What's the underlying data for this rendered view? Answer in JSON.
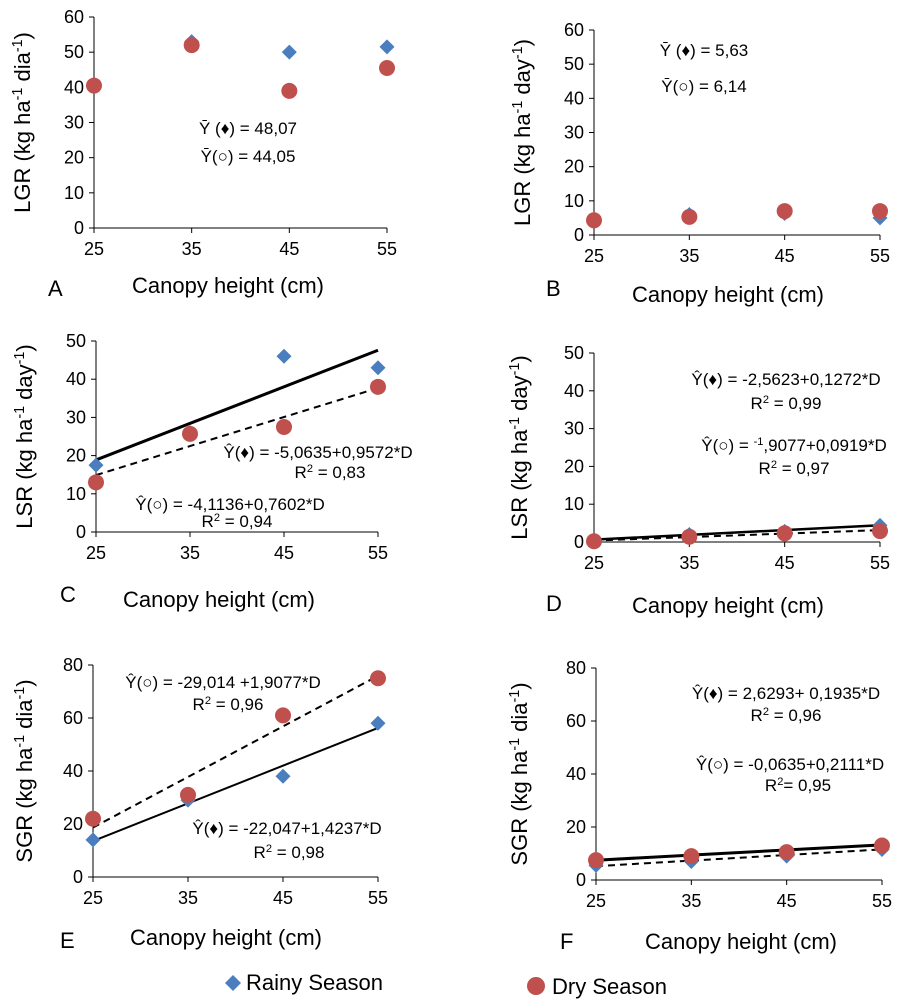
{
  "legend": {
    "rainy": {
      "label": "Rainy Season",
      "color": "#4a7ebf",
      "marker": "diamond"
    },
    "dry": {
      "label": "Dry Season",
      "color": "#c0504d",
      "marker": "circle"
    }
  },
  "chart_data": [
    {
      "id": "A",
      "type": "scatter",
      "panel_letter": "A",
      "ylabel": "LGR (kg ha-1 dia-1)",
      "xlabel": "Canopy height (cm)",
      "x_ticks": [
        25,
        35,
        45,
        55
      ],
      "y_ticks": [
        0,
        10,
        20,
        30,
        40,
        50,
        60
      ],
      "ylim": [
        0,
        60
      ],
      "series": [
        {
          "name": "Rainy Season",
          "x": [
            35,
            45,
            55
          ],
          "y": [
            53,
            50,
            51.5
          ]
        },
        {
          "name": "Dry Season",
          "x": [
            25,
            35,
            45,
            55
          ],
          "y": [
            40.5,
            52,
            39,
            45.5
          ]
        }
      ],
      "annotations": [
        "Ȳ (♦) = 48,07",
        "Ȳ(○) = 44,05"
      ]
    },
    {
      "id": "B",
      "type": "scatter",
      "panel_letter": "B",
      "ylabel": "LGR (kg ha-1 day-1)",
      "xlabel": "Canopy height (cm)",
      "x_ticks": [
        25,
        35,
        45,
        55
      ],
      "y_ticks": [
        0,
        10,
        20,
        30,
        40,
        50,
        60
      ],
      "ylim": [
        0,
        60
      ],
      "series": [
        {
          "name": "Rainy Season",
          "x": [
            25,
            35,
            45,
            55
          ],
          "y": [
            4.5,
            6,
            6.3,
            5
          ]
        },
        {
          "name": "Dry Season",
          "x": [
            25,
            35,
            45,
            55
          ],
          "y": [
            4.3,
            5.3,
            7,
            7
          ]
        }
      ],
      "annotations": [
        "Ȳ (♦) = 5,63",
        "Ȳ(○) = 6,14"
      ]
    },
    {
      "id": "C",
      "type": "scatter",
      "panel_letter": "C",
      "ylabel": "LSR (kg ha-1 day-1)",
      "xlabel": "Canopy height (cm)",
      "x_ticks": [
        25,
        35,
        45,
        55
      ],
      "y_ticks": [
        0,
        10,
        20,
        30,
        40,
        50
      ],
      "ylim": [
        0,
        50
      ],
      "series": [
        {
          "name": "Rainy Season",
          "x": [
            25,
            35,
            45,
            55
          ],
          "y": [
            17.5,
            26,
            46,
            43
          ]
        },
        {
          "name": "Dry Season",
          "x": [
            25,
            35,
            45,
            55
          ],
          "y": [
            13,
            25.7,
            27.5,
            38
          ]
        }
      ],
      "trendlines": [
        {
          "series": "Rainy Season",
          "intercept": -5.0635,
          "slope": 0.9572,
          "style": "solid",
          "width": 3
        },
        {
          "series": "Dry Season",
          "intercept": -4.1136,
          "slope": 0.7602,
          "style": "dashed",
          "width": 2
        }
      ],
      "annotations": [
        "Ŷ(♦) = -5,0635+0,9572*D",
        "R2 = 0,83",
        "Ŷ(○) = -4,1136+0,7602*D",
        "R2 = 0,94"
      ]
    },
    {
      "id": "D",
      "type": "scatter",
      "panel_letter": "D",
      "ylabel": "LSR (kg ha-1 day-1)",
      "xlabel": "Canopy height (cm)",
      "x_ticks": [
        25,
        35,
        45,
        55
      ],
      "y_ticks": [
        0,
        10,
        20,
        30,
        40,
        50
      ],
      "ylim": [
        0,
        50
      ],
      "series": [
        {
          "name": "Rainy Season",
          "x": [
            25,
            35,
            45,
            55
          ],
          "y": [
            0.3,
            2,
            2.8,
            4.4
          ]
        },
        {
          "name": "Dry Season",
          "x": [
            25,
            35,
            45,
            55
          ],
          "y": [
            0.2,
            1.4,
            2.3,
            2.9
          ]
        }
      ],
      "trendlines": [
        {
          "series": "Rainy Season",
          "intercept": -2.5623,
          "slope": 0.1272,
          "style": "solid",
          "width": 2.5
        },
        {
          "series": "Dry Season",
          "intercept": -1.9077,
          "slope": 0.0919,
          "style": "dashed",
          "width": 2
        }
      ],
      "annotations": [
        "Ŷ(♦) = -2,5623+0,1272*D",
        "R2 = 0,99",
        "Ŷ(○) = -1,9077+0,0919*D",
        "R2 = 0,97"
      ]
    },
    {
      "id": "E",
      "type": "scatter",
      "panel_letter": "E",
      "ylabel": "SGR (kg ha-1 dia-1)",
      "xlabel": "Canopy height (cm)",
      "x_ticks": [
        25,
        35,
        45,
        55
      ],
      "y_ticks": [
        0,
        20,
        40,
        60,
        80
      ],
      "ylim": [
        0,
        80
      ],
      "series": [
        {
          "name": "Rainy Season",
          "x": [
            25,
            35,
            45,
            55
          ],
          "y": [
            14,
            29,
            38,
            58
          ]
        },
        {
          "name": "Dry Season",
          "x": [
            25,
            35,
            45,
            55
          ],
          "y": [
            22,
            31,
            61,
            75
          ]
        }
      ],
      "trendlines": [
        {
          "series": "Rainy Season",
          "intercept": -22.047,
          "slope": 1.4237,
          "style": "solid",
          "width": 2
        },
        {
          "series": "Dry Season",
          "intercept": -29.014,
          "slope": 1.9077,
          "style": "dashed",
          "width": 2
        }
      ],
      "annotations": [
        "Ŷ(○) = -29,014 +1,9077*D",
        "R2 = 0,96",
        "Ŷ(♦) = -22,047+1,4237*D",
        "R2 = 0,98"
      ]
    },
    {
      "id": "F",
      "type": "scatter",
      "panel_letter": "F",
      "ylabel": "SGR (kg ha-1 dia-1)",
      "xlabel": "Canopy height (cm)",
      "x_ticks": [
        25,
        35,
        45,
        55
      ],
      "y_ticks": [
        0,
        20,
        40,
        60,
        80
      ],
      "ylim": [
        0,
        80
      ],
      "series": [
        {
          "name": "Rainy Season",
          "x": [
            25,
            35,
            45,
            55
          ],
          "y": [
            5.5,
            7,
            9,
            11.5
          ]
        },
        {
          "name": "Dry Season",
          "x": [
            25,
            35,
            45,
            55
          ],
          "y": [
            7.5,
            9,
            10.5,
            13
          ]
        }
      ],
      "trendlines": [
        {
          "series": "Rainy Season",
          "intercept": 2.6293,
          "slope": 0.1935,
          "style": "solid",
          "width": 3
        },
        {
          "series": "Dry Season",
          "intercept": -0.0635,
          "slope": 0.2111,
          "style": "dashed",
          "width": 2
        }
      ],
      "annotations": [
        "Ŷ(♦) = 2,6293+ 0,1935*D",
        "R2 = 0,96",
        "Ŷ(○) = -0,0635+0,2111*D",
        "R2= 0,95"
      ]
    }
  ]
}
